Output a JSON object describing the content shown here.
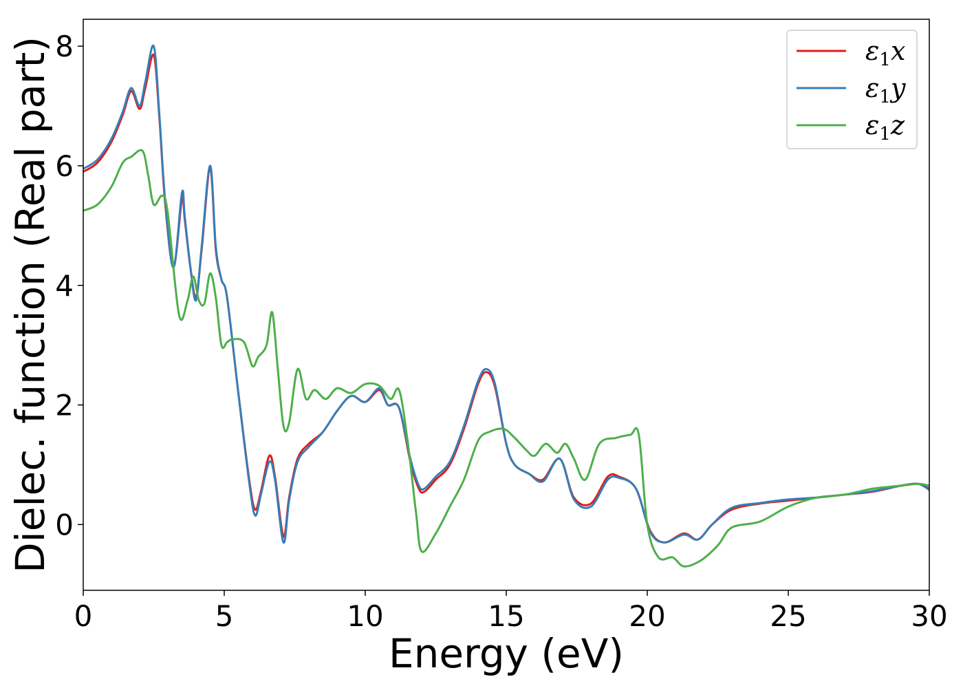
{
  "chart_data": {
    "type": "line",
    "title": "",
    "xlabel": "Energy (eV)",
    "ylabel": "Dielec. function (Real part)",
    "xlim": [
      0,
      30
    ],
    "ylim": [
      -1.1,
      8.45
    ],
    "xticks": [
      0,
      5,
      10,
      15,
      20,
      25,
      30
    ],
    "xtick_labels": [
      "0",
      "5",
      "10",
      "15",
      "20",
      "25",
      "30"
    ],
    "yticks": [
      0,
      2,
      4,
      6,
      8
    ],
    "ytick_labels": [
      "0",
      "2",
      "4",
      "6",
      "8"
    ],
    "grid": false,
    "legend_position": "top-right",
    "series": [
      {
        "name": "ε₁x",
        "legend_base": "ε",
        "legend_sub": "1",
        "legend_tail": "x",
        "color": "#e41a1c",
        "x": [
          0,
          0.5,
          1.0,
          1.4,
          1.7,
          2.0,
          2.2,
          2.5,
          2.7,
          2.9,
          3.2,
          3.5,
          3.6,
          3.8,
          4.0,
          4.2,
          4.5,
          4.7,
          4.9,
          5.1,
          5.5,
          5.9,
          6.1,
          6.3,
          6.6,
          6.8,
          7.1,
          7.3,
          7.6,
          8.0,
          8.5,
          9.0,
          9.5,
          10.0,
          10.5,
          10.8,
          11.2,
          11.6,
          11.9,
          12.1,
          12.5,
          13.0,
          13.5,
          14.0,
          14.3,
          14.6,
          15.0,
          15.3,
          15.8,
          16.3,
          16.9,
          17.4,
          18.0,
          18.6,
          19.0,
          19.6,
          20.1,
          20.6,
          21.3,
          21.8,
          22.3,
          23.0,
          24.0,
          25.0,
          26.0,
          27.0,
          28.0,
          29.0,
          29.6,
          30.0
        ],
        "values": [
          5.9,
          6.05,
          6.4,
          6.85,
          7.25,
          6.95,
          7.3,
          7.85,
          6.8,
          5.4,
          4.3,
          5.45,
          5.1,
          4.3,
          3.8,
          4.6,
          5.95,
          4.6,
          4.1,
          3.8,
          2.2,
          0.7,
          0.25,
          0.55,
          1.15,
          0.8,
          -0.2,
          0.45,
          1.1,
          1.35,
          1.55,
          1.9,
          2.15,
          2.05,
          2.25,
          2.0,
          1.95,
          1.05,
          0.6,
          0.55,
          0.75,
          1.0,
          1.6,
          2.35,
          2.55,
          2.3,
          1.35,
          1.0,
          0.85,
          0.75,
          1.1,
          0.45,
          0.35,
          0.8,
          0.8,
          0.6,
          -0.1,
          -0.3,
          -0.15,
          -0.25,
          0.0,
          0.25,
          0.35,
          0.4,
          0.45,
          0.5,
          0.55,
          0.65,
          0.68,
          0.6
        ]
      },
      {
        "name": "ε₁y",
        "legend_base": "ε",
        "legend_sub": "1",
        "legend_tail": "y",
        "color": "#377eb8",
        "x": [
          0,
          0.5,
          1.0,
          1.4,
          1.7,
          2.0,
          2.2,
          2.5,
          2.7,
          2.9,
          3.2,
          3.5,
          3.6,
          3.8,
          4.0,
          4.2,
          4.5,
          4.7,
          4.9,
          5.1,
          5.5,
          5.9,
          6.1,
          6.3,
          6.6,
          6.8,
          7.1,
          7.3,
          7.6,
          8.0,
          8.5,
          9.0,
          9.5,
          10.0,
          10.5,
          10.8,
          11.2,
          11.6,
          11.9,
          12.1,
          12.5,
          13.0,
          13.5,
          14.0,
          14.3,
          14.6,
          15.0,
          15.3,
          15.8,
          16.3,
          16.9,
          17.4,
          18.0,
          18.6,
          19.0,
          19.6,
          20.1,
          20.6,
          21.3,
          21.8,
          22.3,
          23.0,
          24.0,
          25.0,
          26.0,
          27.0,
          28.0,
          29.0,
          29.6,
          30.0
        ],
        "values": [
          5.95,
          6.1,
          6.45,
          6.9,
          7.3,
          7.0,
          7.4,
          8.0,
          6.85,
          5.45,
          4.3,
          5.55,
          5.15,
          4.3,
          3.75,
          4.65,
          6.0,
          4.65,
          4.1,
          3.8,
          2.2,
          0.65,
          0.15,
          0.5,
          1.05,
          0.75,
          -0.3,
          0.4,
          1.05,
          1.3,
          1.55,
          1.9,
          2.15,
          2.05,
          2.28,
          2.0,
          1.95,
          1.1,
          0.65,
          0.6,
          0.8,
          1.05,
          1.65,
          2.4,
          2.6,
          2.35,
          1.35,
          1.0,
          0.85,
          0.72,
          1.1,
          0.42,
          0.3,
          0.75,
          0.78,
          0.6,
          -0.12,
          -0.3,
          -0.17,
          -0.25,
          0.0,
          0.28,
          0.36,
          0.42,
          0.45,
          0.5,
          0.56,
          0.65,
          0.68,
          0.58
        ]
      },
      {
        "name": "ε₁z",
        "legend_base": "ε",
        "legend_sub": "1",
        "legend_tail": "z",
        "color": "#4daf4a",
        "x": [
          0,
          0.5,
          1.0,
          1.4,
          1.7,
          2.1,
          2.3,
          2.5,
          2.8,
          3.0,
          3.4,
          3.7,
          3.9,
          4.1,
          4.3,
          4.5,
          4.7,
          4.9,
          5.1,
          5.3,
          5.7,
          6.0,
          6.2,
          6.5,
          6.7,
          6.9,
          7.1,
          7.3,
          7.6,
          7.9,
          8.2,
          8.6,
          9.0,
          9.5,
          10.0,
          10.5,
          10.9,
          11.2,
          11.5,
          11.8,
          12.0,
          12.5,
          13.0,
          13.5,
          14.0,
          14.4,
          14.9,
          15.3,
          15.7,
          16.0,
          16.4,
          16.8,
          17.1,
          17.4,
          17.8,
          18.3,
          18.9,
          19.4,
          19.7,
          20.0,
          20.4,
          20.9,
          21.3,
          21.9,
          22.5,
          23.0,
          24.0,
          25.0,
          26.0,
          27.0,
          28.0,
          29.0,
          29.6,
          30.0
        ],
        "values": [
          5.25,
          5.35,
          5.65,
          6.05,
          6.15,
          6.25,
          5.85,
          5.35,
          5.5,
          5.2,
          3.5,
          3.75,
          4.15,
          3.75,
          3.7,
          4.2,
          3.8,
          3.0,
          3.05,
          3.1,
          3.05,
          2.65,
          2.8,
          3.0,
          3.55,
          2.6,
          1.65,
          1.7,
          2.6,
          2.1,
          2.25,
          2.1,
          2.28,
          2.2,
          2.35,
          2.32,
          2.1,
          2.25,
          1.4,
          0.2,
          -0.45,
          -0.15,
          0.3,
          0.75,
          1.4,
          1.55,
          1.6,
          1.45,
          1.25,
          1.15,
          1.35,
          1.2,
          1.35,
          1.1,
          0.75,
          1.35,
          1.45,
          1.5,
          1.5,
          0.0,
          -0.55,
          -0.55,
          -0.7,
          -0.6,
          -0.35,
          -0.05,
          0.05,
          0.3,
          0.45,
          0.5,
          0.6,
          0.65,
          0.68,
          0.65
        ]
      }
    ]
  }
}
